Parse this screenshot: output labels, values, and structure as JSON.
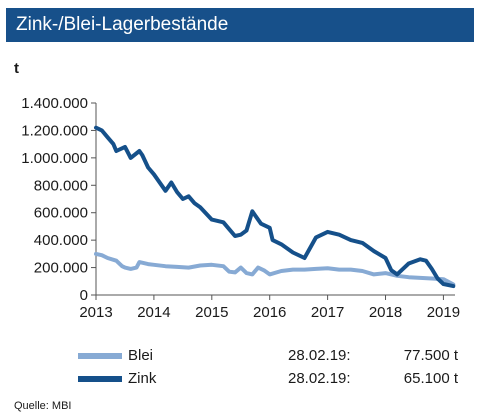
{
  "title": "Zink-/Blei-Lagerbestände",
  "unit": "t",
  "source": "Quelle: MBI",
  "colors": {
    "title_bg": "#17508a",
    "blei": "#87aad4",
    "zink": "#15508a"
  },
  "legend": [
    {
      "name": "Blei",
      "date": "28.02.19:",
      "value": "77.500 t"
    },
    {
      "name": "Zink",
      "date": "28.02.19:",
      "value": "65.100 t"
    }
  ],
  "chart_data": {
    "type": "line",
    "title": "Zink-/Blei-Lagerbestände",
    "ylabel": "t",
    "xlim": [
      2013,
      2019.2
    ],
    "ylim": [
      0,
      1400000
    ],
    "x_ticks": [
      "2013",
      "2014",
      "2015",
      "2016",
      "2017",
      "2018",
      "2019"
    ],
    "y_ticks": [
      "0",
      "200.000",
      "400.000",
      "600.000",
      "800.000",
      "1.000.000",
      "1.200.000",
      "1.400.000"
    ],
    "grid": false,
    "legend_position": "bottom",
    "series": [
      {
        "name": "Blei",
        "x": [
          2013.0,
          2013.1,
          2013.2,
          2013.35,
          2013.45,
          2013.5,
          2013.6,
          2013.7,
          2013.75,
          2013.9,
          2014.0,
          2014.2,
          2014.4,
          2014.6,
          2014.8,
          2015.0,
          2015.2,
          2015.3,
          2015.4,
          2015.5,
          2015.6,
          2015.7,
          2015.8,
          2015.9,
          2016.0,
          2016.2,
          2016.4,
          2016.6,
          2016.8,
          2017.0,
          2017.2,
          2017.4,
          2017.6,
          2017.8,
          2018.0,
          2018.2,
          2018.4,
          2018.6,
          2018.8,
          2019.0,
          2019.17
        ],
        "y": [
          300000,
          290000,
          270000,
          250000,
          210000,
          200000,
          190000,
          200000,
          240000,
          225000,
          220000,
          210000,
          205000,
          200000,
          215000,
          220000,
          210000,
          170000,
          165000,
          200000,
          160000,
          150000,
          200000,
          180000,
          150000,
          175000,
          185000,
          185000,
          190000,
          195000,
          185000,
          185000,
          175000,
          150000,
          160000,
          140000,
          130000,
          125000,
          120000,
          115000,
          77500
        ]
      },
      {
        "name": "Zink",
        "x": [
          2013.0,
          2013.1,
          2013.2,
          2013.3,
          2013.35,
          2013.5,
          2013.6,
          2013.75,
          2013.8,
          2013.9,
          2014.0,
          2014.2,
          2014.3,
          2014.4,
          2014.5,
          2014.6,
          2014.7,
          2014.8,
          2015.0,
          2015.2,
          2015.3,
          2015.4,
          2015.5,
          2015.6,
          2015.7,
          2015.75,
          2015.85,
          2016.0,
          2016.05,
          2016.2,
          2016.4,
          2016.6,
          2016.8,
          2017.0,
          2017.2,
          2017.4,
          2017.6,
          2017.8,
          2018.0,
          2018.1,
          2018.2,
          2018.3,
          2018.4,
          2018.6,
          2018.7,
          2018.8,
          2018.9,
          2019.0,
          2019.17
        ],
        "y": [
          1220000,
          1200000,
          1150000,
          1100000,
          1050000,
          1080000,
          1000000,
          1050000,
          1020000,
          930000,
          880000,
          760000,
          820000,
          750000,
          700000,
          720000,
          670000,
          640000,
          550000,
          530000,
          480000,
          430000,
          440000,
          470000,
          610000,
          580000,
          520000,
          490000,
          400000,
          370000,
          310000,
          270000,
          420000,
          460000,
          440000,
          400000,
          380000,
          320000,
          270000,
          180000,
          150000,
          190000,
          230000,
          260000,
          250000,
          190000,
          120000,
          80000,
          65100
        ]
      }
    ]
  }
}
